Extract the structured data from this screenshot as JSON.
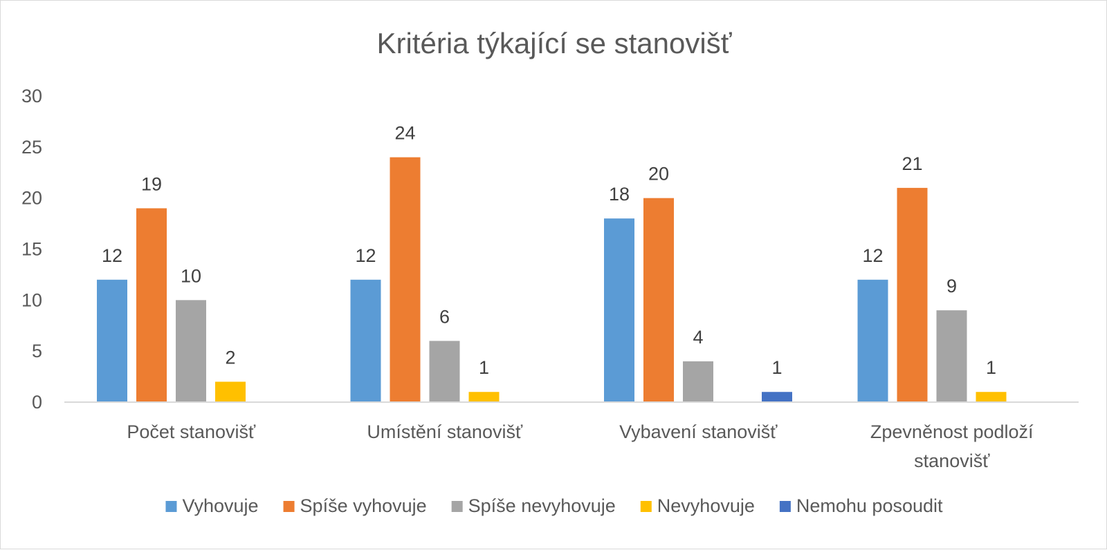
{
  "chart_data": {
    "type": "bar",
    "title": "Kritéria týkající se stanovišť",
    "categories": [
      [
        "Počet stanovišť"
      ],
      [
        "Umístění stanovišť"
      ],
      [
        "Vybavení stanovišť"
      ],
      [
        "Zpevněnost podloží",
        "stanovišť"
      ]
    ],
    "series": [
      {
        "name": "Vyhovuje",
        "color": "#5B9BD5",
        "values": [
          12,
          12,
          18,
          12
        ]
      },
      {
        "name": "Spíše vyhovuje",
        "color": "#ED7D31",
        "values": [
          19,
          24,
          20,
          21
        ]
      },
      {
        "name": "Spíše nevyhovuje",
        "color": "#A5A5A5",
        "values": [
          10,
          6,
          4,
          9
        ]
      },
      {
        "name": "Nevyhovuje",
        "color": "#FFC000",
        "values": [
          2,
          1,
          null,
          1
        ]
      },
      {
        "name": "Nemohu posoudit",
        "color": "#4472C4",
        "values": [
          null,
          null,
          1,
          null
        ]
      }
    ],
    "ylim": [
      0,
      30
    ],
    "yticks": [
      0,
      5,
      10,
      15,
      20,
      25,
      30
    ],
    "grid": false,
    "legend_position": "bottom",
    "data_labels": true
  }
}
